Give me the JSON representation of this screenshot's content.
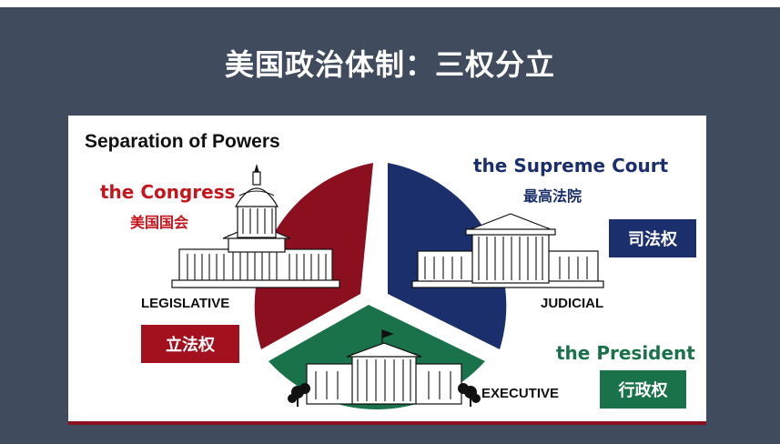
{
  "slide": {
    "title": "美国政治体制：三权分立"
  },
  "diagram": {
    "heading": "Separation of Powers",
    "legislative": {
      "institution_en": "the Congress",
      "institution_cn": "美国国会",
      "branch": "LEGISLATIVE",
      "power": "立法权",
      "color": "#8b0f1f"
    },
    "judicial": {
      "institution_en": "the Supreme Court",
      "institution_cn": "最高法院",
      "branch": "JUDICIAL",
      "power": "司法权",
      "color": "#1a2f6b"
    },
    "executive": {
      "institution_en": "the President",
      "branch": "EXECUTIVE",
      "power": "行政权",
      "color": "#19724a"
    }
  }
}
